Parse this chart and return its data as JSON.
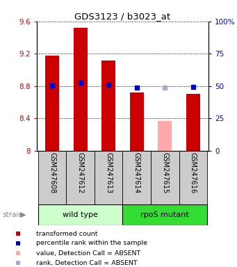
{
  "title": "GDS3123 / b3023_at",
  "samples": [
    "GSM247608",
    "GSM247612",
    "GSM247613",
    "GSM247614",
    "GSM247615",
    "GSM247616"
  ],
  "bar_values": [
    9.18,
    9.52,
    9.12,
    8.72,
    null,
    8.7
  ],
  "bar_absent_values": [
    null,
    null,
    null,
    null,
    8.37,
    null
  ],
  "rank_values": [
    50.5,
    52.5,
    51.0,
    49.0,
    null,
    49.5
  ],
  "rank_absent_values": [
    null,
    null,
    null,
    null,
    49.0,
    null
  ],
  "bar_color": "#cc0000",
  "bar_absent_color": "#ffaaaa",
  "rank_color": "#0000cc",
  "rank_absent_color": "#aaaacc",
  "ylim_left": [
    8.0,
    9.6
  ],
  "ylim_right": [
    0,
    100
  ],
  "yticks_left": [
    8.0,
    8.4,
    8.8,
    9.2,
    9.6
  ],
  "yticks_right": [
    0,
    25,
    50,
    75,
    100
  ],
  "ytick_labels_left": [
    "8",
    "8.4",
    "8.8",
    "9.2",
    "9.6"
  ],
  "ytick_labels_right": [
    "0",
    "25",
    "50",
    "75",
    "100%"
  ],
  "group_colors": {
    "wild type": "#ccffcc",
    "rpoS mutant": "#33dd33"
  },
  "legend_items": [
    {
      "label": "transformed count",
      "color": "#cc0000"
    },
    {
      "label": "percentile rank within the sample",
      "color": "#0000cc"
    },
    {
      "label": "value, Detection Call = ABSENT",
      "color": "#ffaaaa"
    },
    {
      "label": "rank, Detection Call = ABSENT",
      "color": "#aaaacc"
    }
  ],
  "bar_width": 0.5,
  "rank_marker_size": 5,
  "tick_gray_color": "#cccccc",
  "fig_width": 3.41,
  "fig_height": 3.84,
  "dpi": 100
}
